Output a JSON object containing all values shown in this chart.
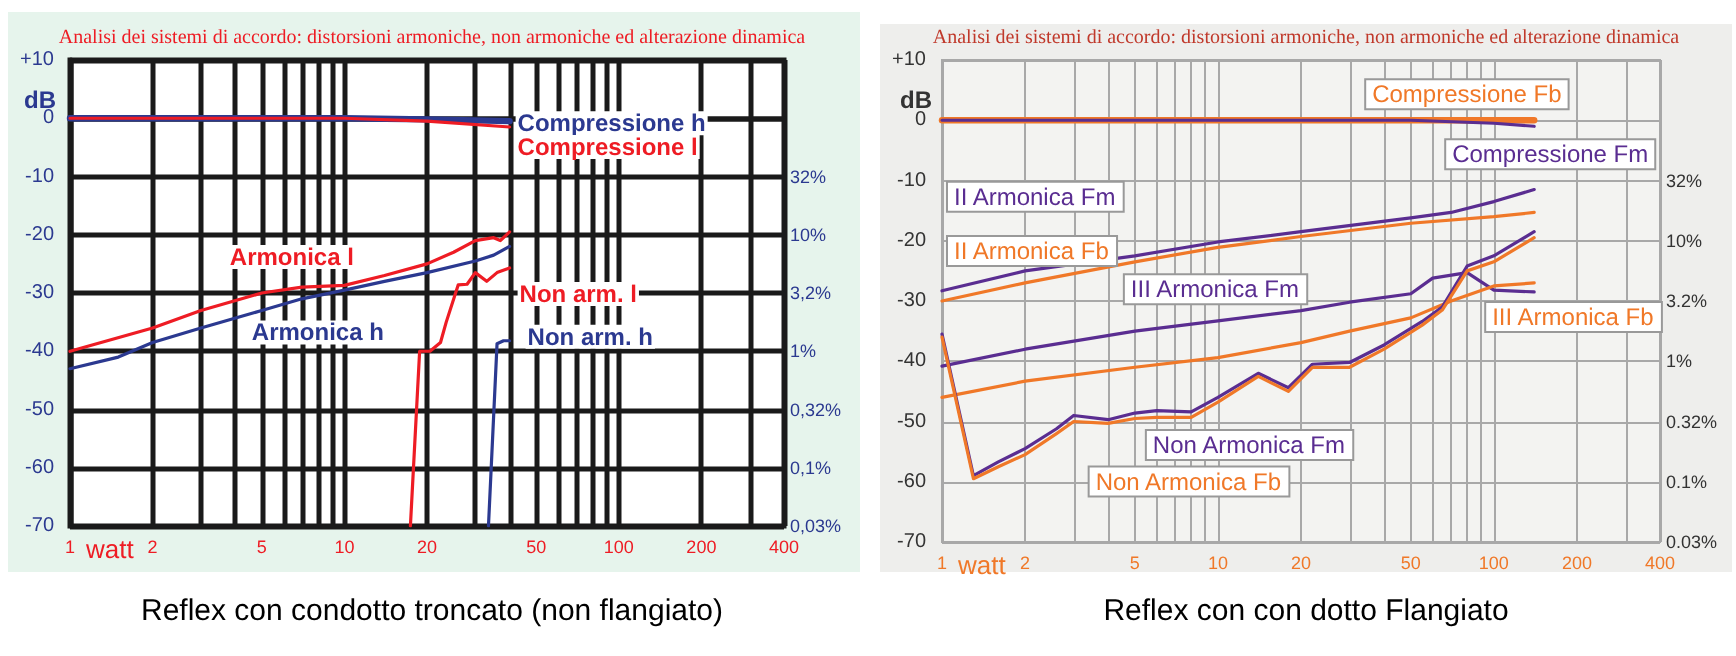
{
  "chart_data": [
    {
      "type": "line",
      "title": "Analisi dei sistemi di accordo: distorsioni armoniche, non armoniche ed alterazione dinamica",
      "xlabel": "watt",
      "ylabel": "dB",
      "annotations": [
        "Reflex con condotto troncato (non flangiato)",
        "32%",
        "10%",
        "3,2%",
        "1%",
        "0,32%",
        "0,1%",
        "0,03%"
      ],
      "log": "x",
      "grid": true,
      "legend": false,
      "marker": "none",
      "line_style": "solid",
      "xlim": [
        1,
        400
      ],
      "xticks": [
        1,
        2,
        {
          "value": 3,
          "label": null
        },
        {
          "value": 4,
          "label": null
        },
        5,
        {
          "value": 6,
          "label": null
        },
        {
          "value": 7,
          "label": null
        },
        {
          "value": 8,
          "label": null
        },
        {
          "value": 9,
          "label": null
        },
        10,
        20,
        {
          "value": 30,
          "label": null
        },
        {
          "value": 40,
          "label": null
        },
        50,
        {
          "value": 60,
          "label": null
        },
        {
          "value": 70,
          "label": null
        },
        {
          "value": 80,
          "label": null
        },
        {
          "value": 90,
          "label": null
        },
        100,
        200,
        {
          "value": 300,
          "label": null
        },
        400
      ],
      "ylim": [
        -70,
        10
      ],
      "yticks": [
        {
          "value": 10,
          "label": "+10"
        },
        0,
        -10,
        -20,
        -30,
        -40,
        -50,
        -60,
        -70
      ],
      "series": [
        {
          "name": "Compressione h",
          "color": "#2b3990",
          "x": [
            1,
            10,
            20,
            40
          ],
          "values": [
            0,
            0,
            -0.2,
            -0.5
          ]
        },
        {
          "name": "Compressione l",
          "color": "#ee1c24",
          "x": [
            1,
            10,
            20,
            40
          ],
          "values": [
            0,
            0,
            -0.5,
            -1.5
          ]
        },
        {
          "name": "Armonica l",
          "color": "#ee1c24",
          "x": [
            1,
            2,
            3,
            5,
            7,
            10,
            14,
            20,
            25,
            30,
            35,
            37,
            40
          ],
          "values": [
            -40,
            -36,
            -33,
            -30,
            -29,
            -28.7,
            -27,
            -25,
            -23,
            -21,
            -20.5,
            -21,
            -19.5
          ]
        },
        {
          "name": "Armonica h",
          "color": "#2b3990",
          "x": [
            1,
            1.5,
            2,
            3,
            5,
            7,
            10,
            14,
            20,
            30,
            35,
            40
          ],
          "values": [
            -43,
            -41,
            -38.5,
            -36,
            -33,
            -31,
            -29.5,
            -28,
            -26.5,
            -24.5,
            -23.5,
            -22
          ]
        },
        {
          "name": "Non arm. l",
          "color": "#ee1c24",
          "x": [
            17.4,
            18.8,
            20.5,
            22.4,
            23.5,
            26,
            28,
            30,
            33,
            36,
            40
          ],
          "values": [
            -70,
            -40,
            -40,
            -38.5,
            -35,
            -28.6,
            -28.5,
            -26.5,
            -28,
            -26.5,
            -25.7
          ]
        },
        {
          "name": "Non arm. h",
          "color": "#2b3990",
          "x": [
            33.5,
            36,
            38,
            40
          ],
          "values": [
            -70,
            -38.7,
            -38.2,
            -38.2
          ]
        }
      ]
    },
    {
      "type": "line",
      "title": "Analisi dei sistemi di accordo: distorsioni armoniche, non armoniche ed alterazione dinamica",
      "xlabel": "watt",
      "ylabel": "dB",
      "annotations": [
        "Reflex con con dotto Flangiato",
        "32%",
        "10%",
        "3.2%",
        "1%",
        "0.32%",
        "0.1%",
        "0.03%"
      ],
      "log": "x",
      "grid": true,
      "legend": false,
      "marker": "none",
      "line_style": "solid",
      "xlim": [
        1,
        400
      ],
      "xticks": [
        1,
        2,
        {
          "value": 3,
          "label": null
        },
        {
          "value": 4,
          "label": null
        },
        5,
        {
          "value": 6,
          "label": null
        },
        {
          "value": 7,
          "label": null
        },
        {
          "value": 8,
          "label": null
        },
        {
          "value": 9,
          "label": null
        },
        10,
        20,
        {
          "value": 30,
          "label": null
        },
        {
          "value": 40,
          "label": null
        },
        50,
        {
          "value": 60,
          "label": null
        },
        {
          "value": 70,
          "label": null
        },
        {
          "value": 80,
          "label": null
        },
        {
          "value": 90,
          "label": null
        },
        100,
        200,
        {
          "value": 300,
          "label": null
        },
        400
      ],
      "ylim": [
        -70,
        10
      ],
      "yticks": [
        {
          "value": 10,
          "label": "+10"
        },
        0,
        -10,
        -20,
        -30,
        -40,
        -50,
        -60,
        -70
      ],
      "series": [
        {
          "name": "Compressione Fb",
          "color": "#f07828",
          "x": [
            1,
            140
          ],
          "values": [
            0,
            0
          ]
        },
        {
          "name": "Compressione Fm",
          "color": "#5a2d91",
          "x": [
            1,
            50,
            100,
            140
          ],
          "values": [
            0,
            0,
            -0.5,
            -1
          ]
        },
        {
          "name": "II Armonica Fm",
          "color": "#5a2d91",
          "x": [
            1,
            2,
            5,
            10,
            20,
            50,
            70,
            100,
            140
          ],
          "values": [
            -28.3,
            -25,
            -22.5,
            -20.2,
            -18.5,
            -16.2,
            -15.3,
            -13.5,
            -11.5
          ]
        },
        {
          "name": "II Armonica Fb",
          "color": "#f07828",
          "x": [
            1,
            2,
            5,
            10,
            20,
            50,
            100,
            140
          ],
          "values": [
            -30,
            -27,
            -23.5,
            -21.1,
            -19.3,
            -17.1,
            -16,
            -15.3
          ]
        },
        {
          "name": "III Armonica Fm",
          "color": "#5a2d91",
          "x": [
            1,
            2,
            5,
            10,
            20,
            30,
            50,
            60,
            80,
            100,
            140
          ],
          "values": [
            -40.8,
            -38,
            -35,
            -33.3,
            -31.6,
            -30.2,
            -28.8,
            -26.2,
            -25.3,
            -28.2,
            -28.5
          ]
        },
        {
          "name": "III Armonica Fb",
          "color": "#f07828",
          "x": [
            1,
            2,
            5,
            10,
            20,
            30,
            50,
            70,
            100,
            140
          ],
          "values": [
            -46,
            -43.3,
            -41,
            -39.4,
            -36.9,
            -35,
            -32.8,
            -30,
            -27.5,
            -27
          ]
        },
        {
          "name": "Non Armonica Fm",
          "color": "#5a2d91",
          "x": [
            1,
            1.3,
            1.6,
            2,
            2.6,
            3,
            4,
            5,
            6,
            8,
            10,
            14,
            18,
            22,
            30,
            40,
            55,
            65,
            80,
            100,
            140
          ],
          "values": [
            -35.5,
            -59,
            -56.7,
            -54.5,
            -51.2,
            -49,
            -49.7,
            -48.6,
            -48.2,
            -48.4,
            -46,
            -42,
            -44.4,
            -40.5,
            -40.2,
            -37.3,
            -33.4,
            -31,
            -24.2,
            -22.5,
            -18.5
          ]
        },
        {
          "name": "Non Armonica Fb",
          "color": "#f07828",
          "x": [
            1,
            1.3,
            1.6,
            2,
            2.6,
            3,
            4,
            5,
            6,
            8,
            10,
            14,
            18,
            22,
            30,
            40,
            55,
            65,
            80,
            100,
            140
          ],
          "values": [
            -36,
            -59.5,
            -57.5,
            -55.5,
            -52,
            -50,
            -50.3,
            -49.5,
            -49.3,
            -49.3,
            -46.8,
            -42.5,
            -45,
            -41,
            -41,
            -38,
            -34,
            -31.5,
            -25,
            -23.5,
            -19.5
          ]
        }
      ]
    }
  ]
}
